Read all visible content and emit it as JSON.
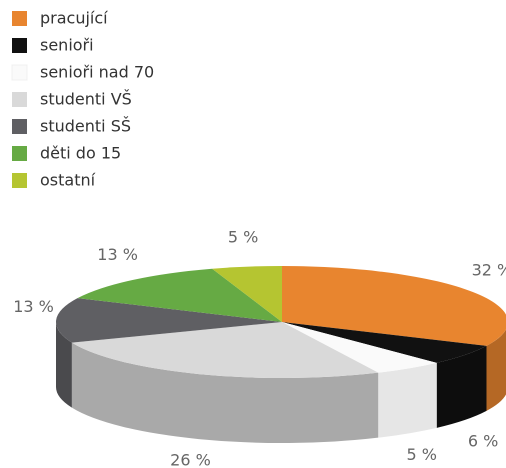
{
  "chart_data": {
    "type": "pie3d",
    "categories": [
      "pracující",
      "senioři",
      "senioři nad 70",
      "studenti VŠ",
      "studenti SŠ",
      "děti do 15",
      "ostatní"
    ],
    "values": [
      32,
      6,
      5,
      26,
      13,
      13,
      5
    ],
    "value_labels": [
      "32 %",
      "6 %",
      "5 %",
      "26 %",
      "13 %",
      "13 %",
      "5 %"
    ],
    "colors": [
      "#e8852f",
      "#111111",
      "#fafafa",
      "#d9d9d9",
      "#5f5f63",
      "#66aa44",
      "#b5c531"
    ],
    "legend": "top-left"
  }
}
